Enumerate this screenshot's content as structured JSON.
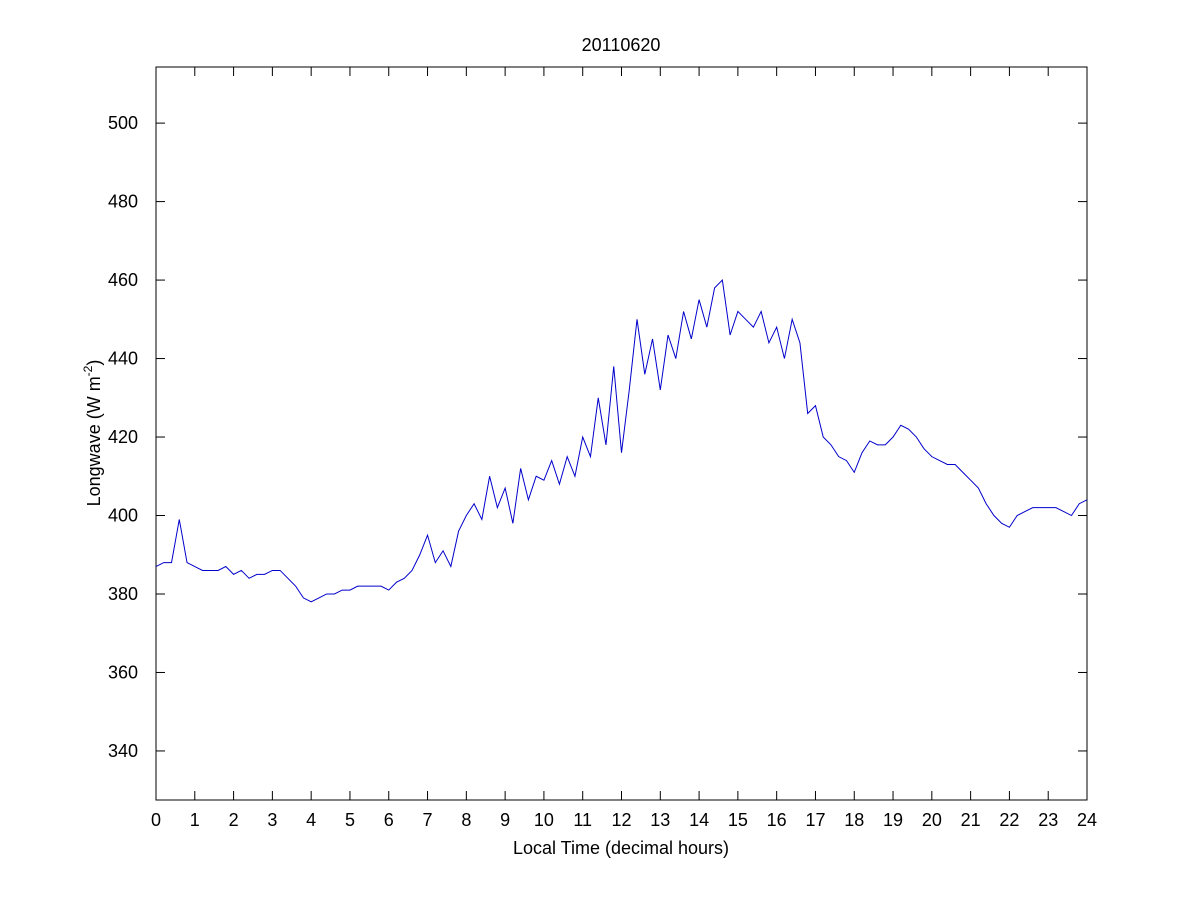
{
  "chart_data": {
    "type": "line",
    "title": "20110620",
    "x_label": "Local Time (decimal hours)",
    "y_label_parts": [
      "Longwave (W m",
      "-2",
      ")"
    ],
    "color": "#0000cc",
    "xlim": [
      0,
      24
    ],
    "xticks": [
      0,
      1,
      2,
      3,
      4,
      5,
      6,
      7,
      8,
      9,
      10,
      11,
      12,
      13,
      14,
      15,
      16,
      17,
      18,
      19,
      20,
      21,
      22,
      23,
      24
    ],
    "ylim": [
      327.5,
      514.3
    ],
    "yticks": [
      340,
      360,
      380,
      400,
      420,
      440,
      460,
      480,
      500
    ],
    "x": [
      0,
      0.2,
      0.4,
      0.6,
      0.8,
      1,
      1.2,
      1.4,
      1.6,
      1.8,
      2,
      2.2,
      2.4,
      2.6,
      2.8,
      3,
      3.2,
      3.4,
      3.6,
      3.8,
      4,
      4.2,
      4.4,
      4.6,
      4.8,
      5,
      5.2,
      5.4,
      5.6,
      5.8,
      6,
      6.2,
      6.4,
      6.6,
      6.8,
      7,
      7.2,
      7.4,
      7.6,
      7.8,
      8,
      8.2,
      8.4,
      8.6,
      8.8,
      9,
      9.2,
      9.4,
      9.6,
      9.8,
      10,
      10.2,
      10.4,
      10.6,
      10.8,
      11,
      11.2,
      11.4,
      11.6,
      11.8,
      12,
      12.2,
      12.4,
      12.6,
      12.8,
      13,
      13.2,
      13.4,
      13.6,
      13.8,
      14,
      14.2,
      14.4,
      14.6,
      14.8,
      15,
      15.2,
      15.4,
      15.6,
      15.8,
      16,
      16.2,
      16.4,
      16.6,
      16.8,
      17,
      17.2,
      17.4,
      17.6,
      17.8,
      18,
      18.2,
      18.4,
      18.6,
      18.8,
      19,
      19.2,
      19.4,
      19.6,
      19.8,
      20,
      20.2,
      20.4,
      20.6,
      20.8,
      21,
      21.2,
      21.4,
      21.6,
      21.8,
      22,
      22.2,
      22.4,
      22.6,
      22.8,
      23,
      23.2,
      23.4,
      23.6,
      23.8,
      24
    ],
    "values": [
      387,
      388,
      388,
      399,
      388,
      387,
      386,
      386,
      386,
      387,
      385,
      386,
      384,
      385,
      385,
      386,
      386,
      384,
      382,
      379,
      378,
      379,
      380,
      380,
      381,
      381,
      382,
      382,
      382,
      382,
      381,
      383,
      384,
      386,
      390,
      395,
      388,
      391,
      387,
      396,
      400,
      403,
      399,
      410,
      402,
      407,
      398,
      412,
      404,
      410,
      409,
      414,
      408,
      415,
      410,
      420,
      415,
      430,
      418,
      438,
      416,
      432,
      450,
      436,
      445,
      432,
      446,
      440,
      452,
      445,
      455,
      448,
      458,
      460,
      446,
      452,
      450,
      448,
      452,
      444,
      448,
      440,
      450,
      444,
      426,
      428,
      420,
      418,
      415,
      414,
      411,
      416,
      419,
      418,
      418,
      420,
      423,
      422,
      420,
      417,
      415,
      414,
      413,
      413,
      411,
      409,
      407,
      403,
      400,
      398,
      397,
      400,
      401,
      402,
      402,
      402,
      402,
      401,
      400,
      403,
      404
    ]
  }
}
